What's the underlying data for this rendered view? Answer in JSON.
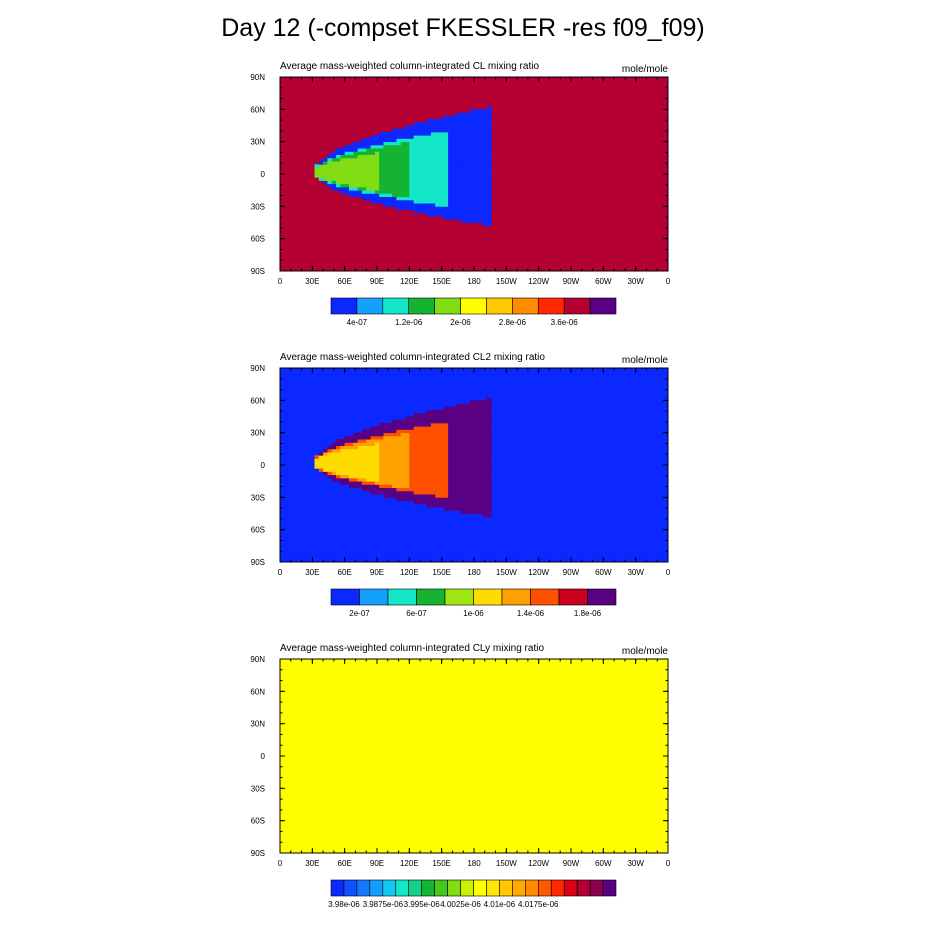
{
  "page": {
    "title": "Day 12 (-compset FKESSLER -res f09_f09)"
  },
  "chart_data": [
    {
      "type": "heatmap",
      "title": "Average mass-weighted column-integrated CL mixing ratio",
      "units": "mole/mole",
      "x_tick_labels": [
        "0",
        "30E",
        "60E",
        "90E",
        "120E",
        "150E",
        "180",
        "150W",
        "120W",
        "90W",
        "60W",
        "30W",
        "0"
      ],
      "y_tick_labels": [
        "90N",
        "60N",
        "30N",
        "0",
        "30S",
        "60S",
        "90S"
      ],
      "xlim": [
        0,
        360
      ],
      "ylim": [
        -90,
        90
      ],
      "grid": false,
      "colorbar": {
        "colors": [
          "#0a28ff",
          "#14a0ff",
          "#14e6c8",
          "#14b432",
          "#82dc14",
          "#ffff00",
          "#ffc800",
          "#ff8c00",
          "#ff2800",
          "#b40032",
          "#5a0082"
        ],
        "labels": [
          "4e-07",
          "1.2e-06",
          "2e-06",
          "2.8e-06",
          "3.6e-06"
        ],
        "label_positions": [
          1,
          3,
          5,
          7,
          9
        ]
      },
      "background_color_index": 9,
      "field": [
        {
          "lon": 30,
          "lat": 2,
          "lonA": 195,
          "lonB": 0,
          "latA": 62,
          "latB": -48,
          "color_index": 0
        },
        {
          "lon": 30,
          "lat": 2,
          "lonA": 155,
          "lonB": 0,
          "latA": 40,
          "latB": -30,
          "color_index": 2
        },
        {
          "lon": 30,
          "lat": 2,
          "lonA": 120,
          "lonB": 0,
          "latA": 30,
          "latB": -22,
          "color_index": 3
        },
        {
          "lon": 30,
          "lat": 2,
          "lonA": 90,
          "lonB": 0,
          "latA": 20,
          "latB": -15,
          "color_index": 4
        }
      ]
    },
    {
      "type": "heatmap",
      "title": "Average mass-weighted column-integrated CL2 mixing ratio",
      "units": "mole/mole",
      "x_tick_labels": [
        "0",
        "30E",
        "60E",
        "90E",
        "120E",
        "150E",
        "180",
        "150W",
        "120W",
        "90W",
        "60W",
        "30W",
        "0"
      ],
      "y_tick_labels": [
        "90N",
        "60N",
        "30N",
        "0",
        "30S",
        "60S",
        "90S"
      ],
      "xlim": [
        0,
        360
      ],
      "ylim": [
        -90,
        90
      ],
      "grid": false,
      "colorbar": {
        "colors": [
          "#0a28ff",
          "#14a0ff",
          "#14e6c8",
          "#14b432",
          "#a0e614",
          "#ffdc00",
          "#ffa000",
          "#ff5000",
          "#c8001e",
          "#5a0082"
        ],
        "labels": [
          "2e-07",
          "6e-07",
          "1e-06",
          "1.4e-06",
          "1.8e-06"
        ],
        "label_positions": [
          1,
          3,
          5,
          7,
          9
        ]
      },
      "background_color_index": 0,
      "field": [
        {
          "lon": 30,
          "lat": 2,
          "lonA": 195,
          "lonB": 0,
          "latA": 62,
          "latB": -48,
          "color_index": 9
        },
        {
          "lon": 30,
          "lat": 2,
          "lonA": 155,
          "lonB": 0,
          "latA": 40,
          "latB": -30,
          "color_index": 7
        },
        {
          "lon": 30,
          "lat": 2,
          "lonA": 120,
          "lonB": 0,
          "latA": 30,
          "latB": -22,
          "color_index": 6
        },
        {
          "lon": 30,
          "lat": 2,
          "lonA": 90,
          "lonB": 0,
          "latA": 20,
          "latB": -15,
          "color_index": 5
        }
      ]
    },
    {
      "type": "heatmap",
      "title": "Average mass-weighted column-integrated CLy mixing ratio",
      "units": "mole/mole",
      "x_tick_labels": [
        "0",
        "30E",
        "60E",
        "90E",
        "120E",
        "150E",
        "180",
        "150W",
        "120W",
        "90W",
        "60W",
        "30W",
        "0"
      ],
      "y_tick_labels": [
        "90N",
        "60N",
        "30N",
        "0",
        "30S",
        "60S",
        "90S"
      ],
      "xlim": [
        0,
        360
      ],
      "ylim": [
        -90,
        90
      ],
      "grid": false,
      "colorbar": {
        "colors": [
          "#0a28ff",
          "#0f50ff",
          "#1478ff",
          "#14a0ff",
          "#14c8f0",
          "#14e6c8",
          "#14d28c",
          "#14b432",
          "#46c81e",
          "#82dc14",
          "#c8f000",
          "#ffff00",
          "#ffe600",
          "#ffc800",
          "#ffaa00",
          "#ff8c00",
          "#ff5a00",
          "#ff2800",
          "#dc0014",
          "#b40032",
          "#8c0050",
          "#5a0082"
        ],
        "labels": [
          "3.98e-06",
          "3.9875e-06",
          "3.995e-06",
          "4.0025e-06",
          "4.01e-06",
          "4.0175e-06"
        ],
        "label_positions": [
          1,
          4,
          7,
          10,
          13,
          16
        ]
      },
      "background_color_index": 11,
      "field": []
    }
  ]
}
